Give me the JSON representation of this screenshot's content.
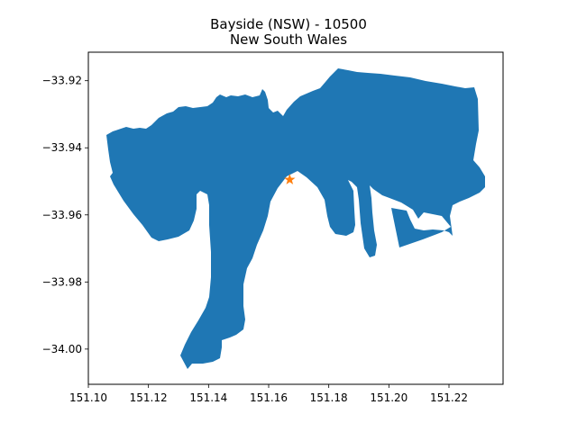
{
  "figure": {
    "title_line1": "Bayside (NSW) - 10500",
    "title_line2": "New South Wales"
  },
  "map": {
    "region_color": "#1f77b4",
    "marker_color": "#ff7f0e",
    "marker_shape": "star",
    "marker_lon": 151.167,
    "marker_lat": -33.9495,
    "xlim": [
      151.1,
      151.238
    ],
    "ylim": [
      -34.0105,
      -33.9115
    ],
    "x_ticks": [
      {
        "value": 151.1,
        "label": "151.10"
      },
      {
        "value": 151.12,
        "label": "151.12"
      },
      {
        "value": 151.14,
        "label": "151.14"
      },
      {
        "value": 151.16,
        "label": "151.16"
      },
      {
        "value": 151.18,
        "label": "151.18"
      },
      {
        "value": 151.2,
        "label": "151.20"
      },
      {
        "value": 151.22,
        "label": "151.22"
      }
    ],
    "y_ticks": [
      {
        "value": -33.92,
        "label": "−33.92"
      },
      {
        "value": -33.94,
        "label": "−33.94"
      },
      {
        "value": -33.96,
        "label": "−33.96"
      },
      {
        "value": -33.98,
        "label": "−33.98"
      },
      {
        "value": -34.0,
        "label": "−34.00"
      }
    ]
  }
}
